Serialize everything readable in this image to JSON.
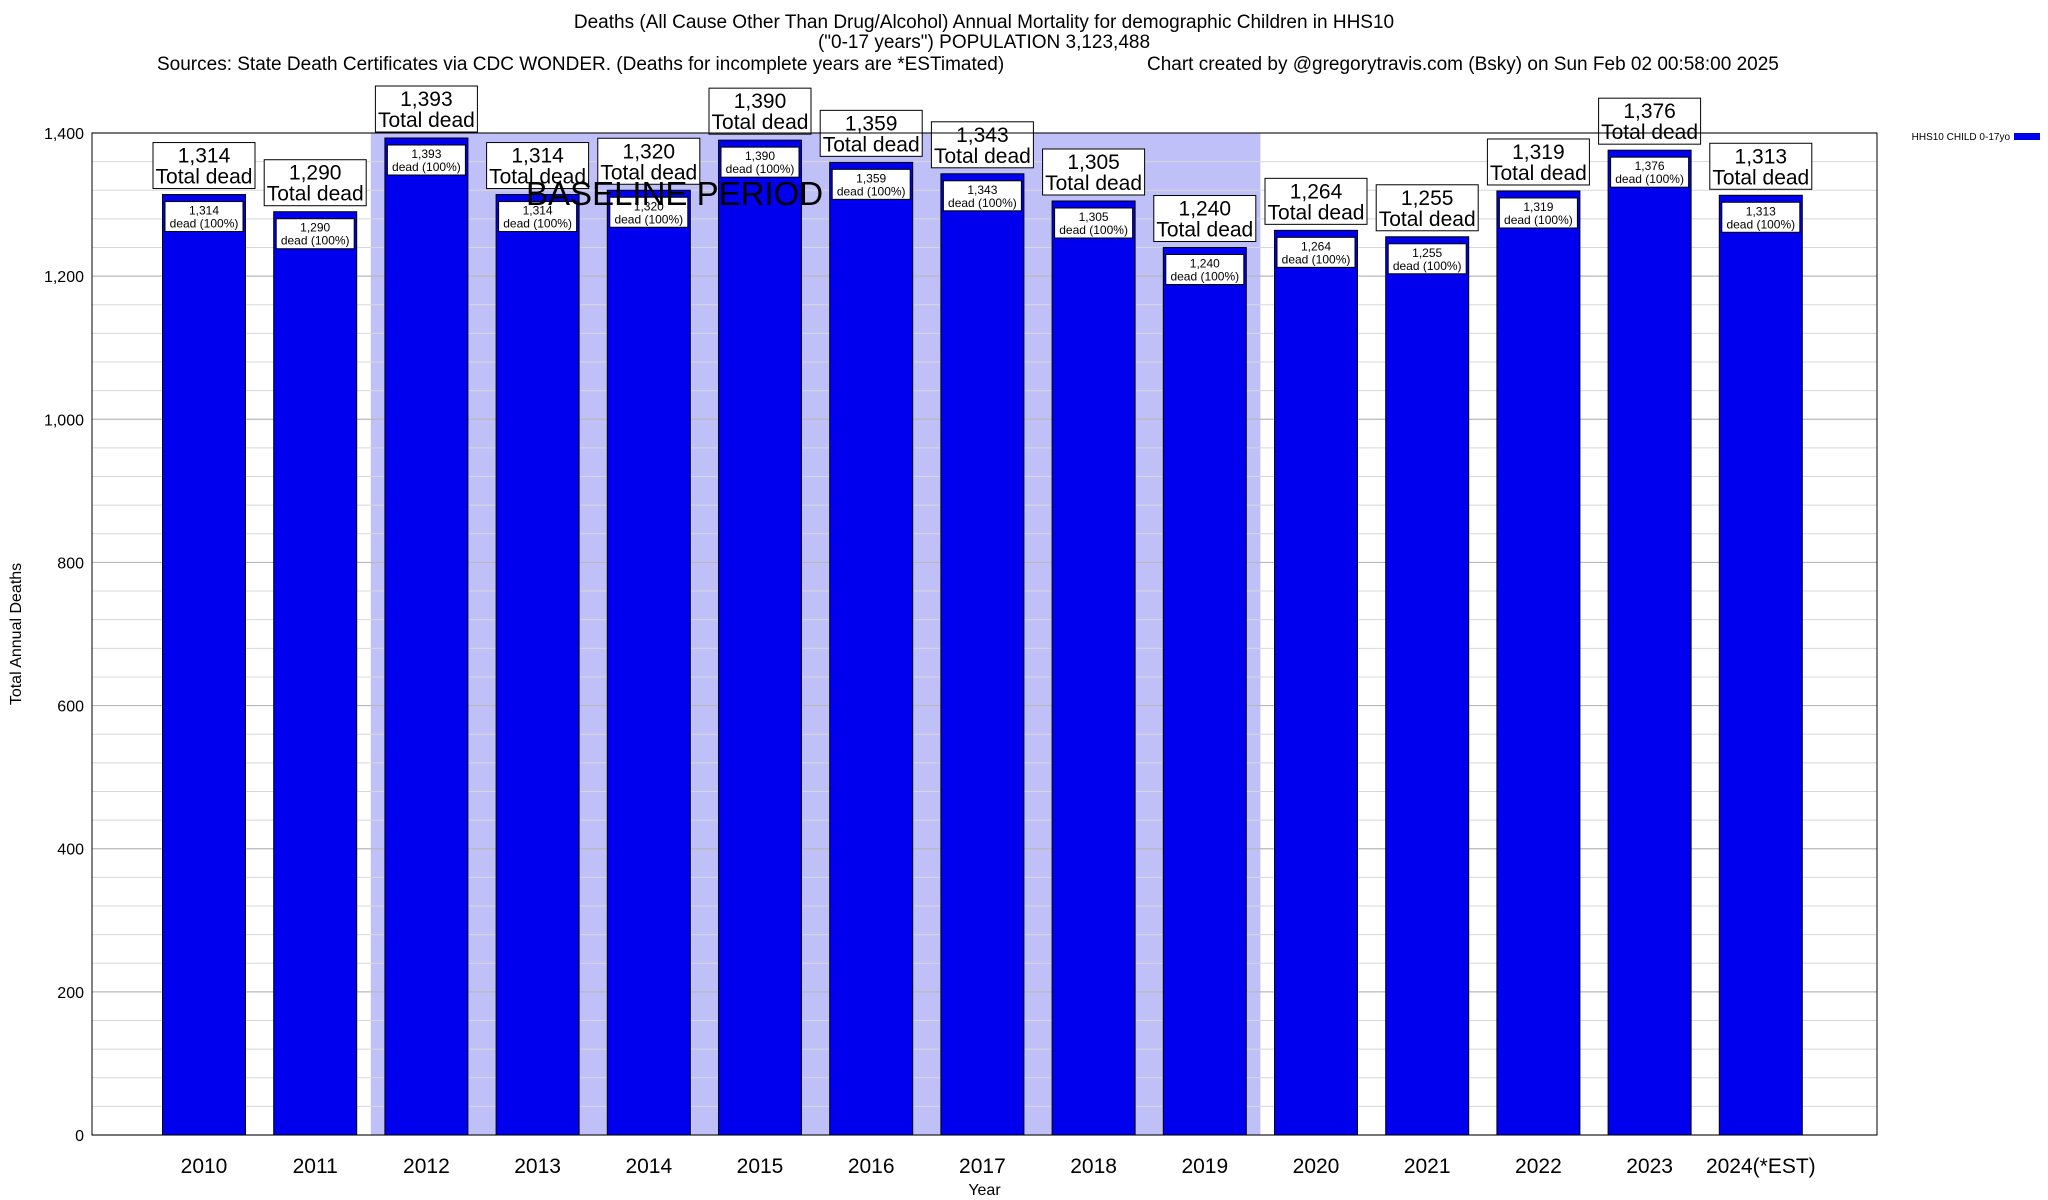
{
  "header": {
    "title": "Deaths (All Cause Other Than Drug/Alcohol) Annual Mortality for demographic Children in HHS10",
    "subtitle": "(\"0-17 years\") POPULATION 3,123,488",
    "sources": "Sources: State Death Certificates via CDC WONDER. (Deaths for incomplete years are *ESTimated)",
    "credit": "Chart created by @gregorytravis.com (Bsky) on Sun Feb 02 00:58:00 2025"
  },
  "chart_data": {
    "type": "bar",
    "categories": [
      "2010",
      "2011",
      "2012",
      "2013",
      "2014",
      "2015",
      "2016",
      "2017",
      "2018",
      "2019",
      "2020",
      "2021",
      "2022",
      "2023",
      "2024(*EST)"
    ],
    "series": [
      {
        "name": "HHS10 CHILD 0-17yo",
        "values": [
          1314,
          1290,
          1393,
          1314,
          1320,
          1390,
          1359,
          1343,
          1305,
          1240,
          1264,
          1255,
          1319,
          1376,
          1313
        ]
      }
    ],
    "value_labels": [
      "1,314",
      "1,290",
      "1,393",
      "1,314",
      "1,320",
      "1,390",
      "1,359",
      "1,343",
      "1,305",
      "1,240",
      "1,264",
      "1,255",
      "1,319",
      "1,376",
      "1,313"
    ],
    "total_label_suffix": "Total dead",
    "inner_label_suffix": "dead (100%)",
    "xlabel": "Year",
    "ylabel": "Total Annual Deaths",
    "ylim": [
      0,
      1400
    ],
    "yticks": [
      0,
      200,
      400,
      600,
      800,
      1000,
      1200,
      1400
    ],
    "ytick_labels": [
      "0",
      "200",
      "400",
      "600",
      "800",
      "1,000",
      "1,200",
      "1,400"
    ],
    "minor_step": 40,
    "grid": true,
    "legend_position": "top-right",
    "baseline": {
      "label": "BASELINE PERIOD",
      "from": "2012",
      "to": "2019"
    },
    "colors": {
      "bar": "#0000ee",
      "bar_edge": "#000000",
      "baseline_band": "#c0c0f8",
      "grid": "#b8b8b8"
    }
  }
}
